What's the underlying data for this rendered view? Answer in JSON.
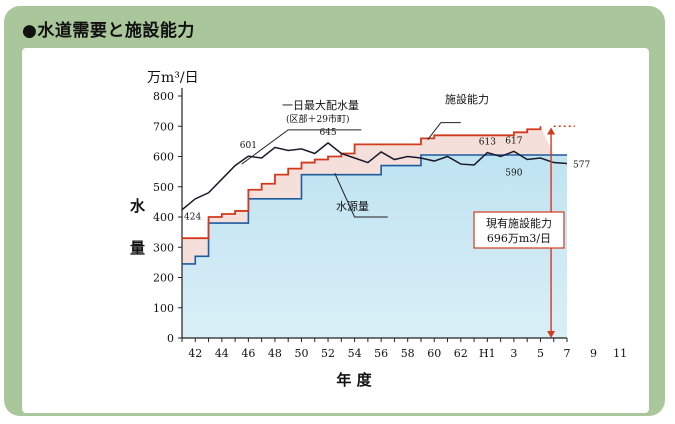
{
  "title": "●水道需要と施設能力",
  "chart_data": {
    "type": "line",
    "unit_label": "万m³/日",
    "ylabel": "水量",
    "xlabel": "年 度",
    "ylim": [
      0,
      800
    ],
    "y_ticks": [
      0,
      100,
      200,
      300,
      400,
      500,
      600,
      700,
      800
    ],
    "x_ticks": [
      "42",
      "44",
      "46",
      "48",
      "50",
      "52",
      "54",
      "56",
      "58",
      "60",
      "62",
      "H1",
      "3",
      "5",
      "7",
      "9",
      "11"
    ],
    "grid": false,
    "series": [
      {
        "name": "一日最大配水量",
        "sublabel": "(区部＋29市町)",
        "color": "#1a1a2a",
        "x": [
          41,
          42,
          43,
          44,
          45,
          46,
          47,
          48,
          49,
          50,
          51,
          52,
          53,
          54,
          55,
          56,
          57,
          58,
          59,
          60,
          61,
          62,
          63,
          64,
          65,
          66,
          67,
          68,
          69,
          70
        ],
        "values": [
          424,
          460,
          480,
          525,
          570,
          601,
          595,
          630,
          620,
          625,
          610,
          645,
          610,
          595,
          580,
          615,
          590,
          600,
          595,
          585,
          600,
          575,
          572,
          613,
          600,
          617,
          590,
          595,
          580,
          577
        ]
      },
      {
        "name": "施設能力",
        "color": "#d23a1e",
        "x": [
          41,
          43,
          44,
          45,
          46,
          47,
          48,
          49,
          50,
          51,
          52,
          53,
          54,
          59,
          60,
          66,
          67,
          68,
          70
        ],
        "values": [
          330,
          400,
          410,
          420,
          490,
          510,
          540,
          560,
          580,
          590,
          600,
          610,
          640,
          660,
          670,
          680,
          690,
          700,
          696
        ]
      },
      {
        "name": "水源量",
        "color": "#1e5a9e",
        "x": [
          41,
          42,
          43,
          46,
          50,
          56,
          59,
          70
        ],
        "values": [
          245,
          270,
          380,
          460,
          540,
          570,
          605,
          605
        ]
      }
    ],
    "annotations": [
      "424",
      "601",
      "645",
      "613",
      "617",
      "590",
      "577"
    ],
    "callout": {
      "line1": "現有施設能力",
      "line2": "696万m3/日"
    }
  }
}
